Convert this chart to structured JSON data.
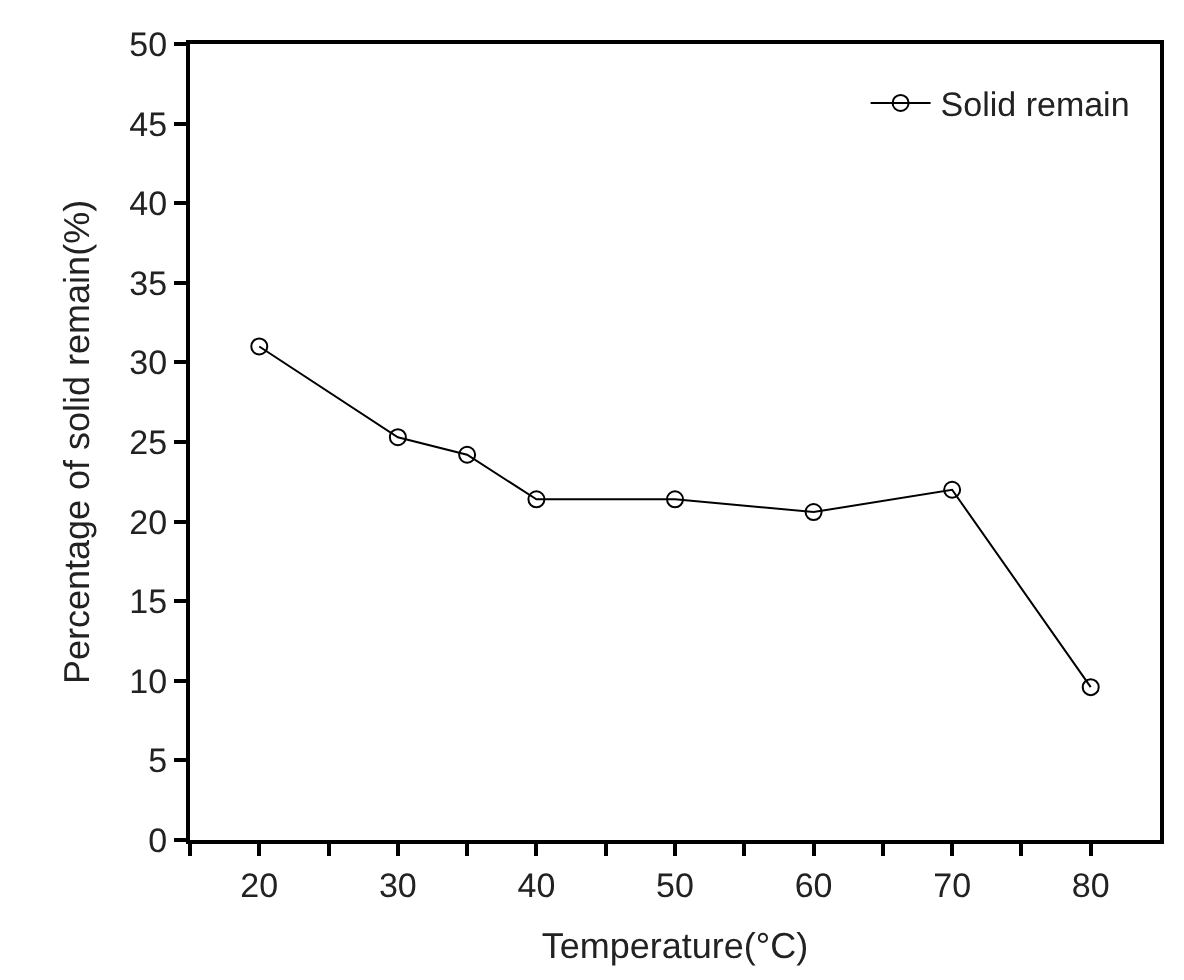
{
  "chart_data": {
    "type": "line",
    "xlabel": "Temperature(°C)",
    "ylabel": "Percentage of solid remain(%)",
    "x": [
      20,
      30,
      35,
      40,
      50,
      60,
      70,
      80
    ],
    "series": [
      {
        "name": "Solid remain",
        "color": "#000000",
        "values": [
          31.0,
          25.3,
          24.2,
          21.4,
          21.4,
          20.6,
          22.0,
          9.6
        ]
      }
    ],
    "xlim": [
      15,
      85
    ],
    "xticks": [
      {
        "value": 15,
        "label": null
      },
      20,
      {
        "value": 25,
        "label": null
      },
      30,
      {
        "value": 35,
        "label": null
      },
      40,
      {
        "value": 45,
        "label": null
      },
      50,
      {
        "value": 55,
        "label": null
      },
      60,
      {
        "value": 65,
        "label": null
      },
      70,
      {
        "value": 75,
        "label": null
      },
      80
    ],
    "ylim": [
      0,
      50
    ],
    "yticks": [
      0,
      5,
      10,
      15,
      20,
      25,
      30,
      35,
      40,
      45,
      50
    ],
    "marker": "circle",
    "line_style": "solid",
    "legend": "top right"
  }
}
